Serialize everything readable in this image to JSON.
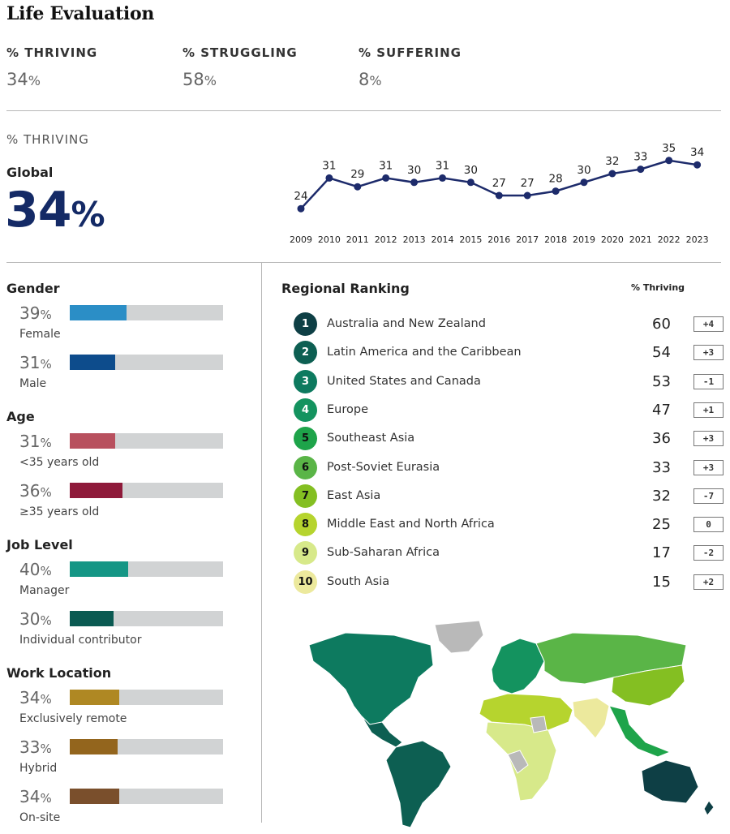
{
  "title": "Life Evaluation",
  "summary": [
    {
      "label": "% THRIVING",
      "value": "34",
      "unit": "%"
    },
    {
      "label": "% STRUGGLING",
      "value": "58",
      "unit": "%"
    },
    {
      "label": "% SUFFERING",
      "value": "8",
      "unit": "%"
    }
  ],
  "global": {
    "section_label": "% THRIVING",
    "label": "Global",
    "value": "34",
    "unit": "%"
  },
  "colors": {
    "trend_line": "#1d2b6b",
    "global_value": "#142a66",
    "bar_track": "#d1d3d4"
  },
  "chart_data": [
    {
      "type": "line",
      "title": "",
      "xlabel": "",
      "ylabel": "",
      "grid": false,
      "x": [
        "2009",
        "2010",
        "2011",
        "2012",
        "2013",
        "2014",
        "2015",
        "2016",
        "2017",
        "2018",
        "2019",
        "2020",
        "2021",
        "2022",
        "2023"
      ],
      "series": [
        {
          "values": [
            24,
            31,
            29,
            31,
            30,
            31,
            30,
            27,
            27,
            28,
            30,
            32,
            33,
            35,
            34
          ]
        }
      ],
      "ylim": [
        22,
        37
      ]
    },
    {
      "type": "bar",
      "orientation": "horizontal",
      "xlim": [
        0,
        100
      ],
      "groups": [
        {
          "title": "Gender",
          "rows": [
            {
              "label": "Female",
              "value": 39,
              "color": "#2b8ec6"
            },
            {
              "label": "Male",
              "value": 31,
              "color": "#0d4c8c"
            }
          ]
        },
        {
          "title": "Age",
          "rows": [
            {
              "label": "<35 years old",
              "value": 31,
              "color": "#b8505e"
            },
            {
              "label": "≥35 years old",
              "value": 36,
              "color": "#8e1a3a"
            }
          ]
        },
        {
          "title": "Job Level",
          "rows": [
            {
              "label": "Manager",
              "value": 40,
              "color": "#159685"
            },
            {
              "label": "Individual contributor",
              "value": 30,
              "color": "#0b5a52"
            }
          ]
        },
        {
          "title": "Work Location",
          "rows": [
            {
              "label": "Exclusively remote",
              "value": 34,
              "color": "#af8823"
            },
            {
              "label": "Hybrid",
              "value": 33,
              "color": "#93651d"
            },
            {
              "label": "On-site",
              "value": 34,
              "color": "#7a4f2c"
            }
          ]
        }
      ]
    },
    {
      "type": "table",
      "title": "Regional Ranking",
      "columns": [
        "",
        "",
        "% Thriving",
        ""
      ],
      "rows": [
        {
          "rank": "1",
          "region": "Australia and New Zealand",
          "value": 60,
          "change": "+4",
          "color": "#0e3f45",
          "text_color": "#ffffff"
        },
        {
          "rank": "2",
          "region": "Latin America and the Caribbean",
          "value": 54,
          "change": "+3",
          "color": "#0d5f52",
          "text_color": "#ffffff"
        },
        {
          "rank": "3",
          "region": "United States and Canada",
          "value": 53,
          "change": "-1",
          "color": "#0d7a5f",
          "text_color": "#ffffff"
        },
        {
          "rank": "4",
          "region": "Europe",
          "value": 47,
          "change": "+1",
          "color": "#14935f",
          "text_color": "#ffffff"
        },
        {
          "rank": "5",
          "region": "Southeast Asia",
          "value": 36,
          "change": "+3",
          "color": "#1ea44a",
          "text_color": "#111111"
        },
        {
          "rank": "6",
          "region": "Post-Soviet Eurasia",
          "value": 33,
          "change": "+3",
          "color": "#5ab547",
          "text_color": "#111111"
        },
        {
          "rank": "7",
          "region": "East Asia",
          "value": 32,
          "change": "-7",
          "color": "#84bf22",
          "text_color": "#111111"
        },
        {
          "rank": "8",
          "region": "Middle East and North Africa",
          "value": 25,
          "change": "0",
          "color": "#b6d42e",
          "text_color": "#111111"
        },
        {
          "rank": "9",
          "region": "Sub-Saharan Africa",
          "value": 17,
          "change": "-2",
          "color": "#d7e98a",
          "text_color": "#111111"
        },
        {
          "rank": "10",
          "region": "South Asia",
          "value": 15,
          "change": "+2",
          "color": "#ece99d",
          "text_color": "#111111"
        }
      ]
    }
  ]
}
